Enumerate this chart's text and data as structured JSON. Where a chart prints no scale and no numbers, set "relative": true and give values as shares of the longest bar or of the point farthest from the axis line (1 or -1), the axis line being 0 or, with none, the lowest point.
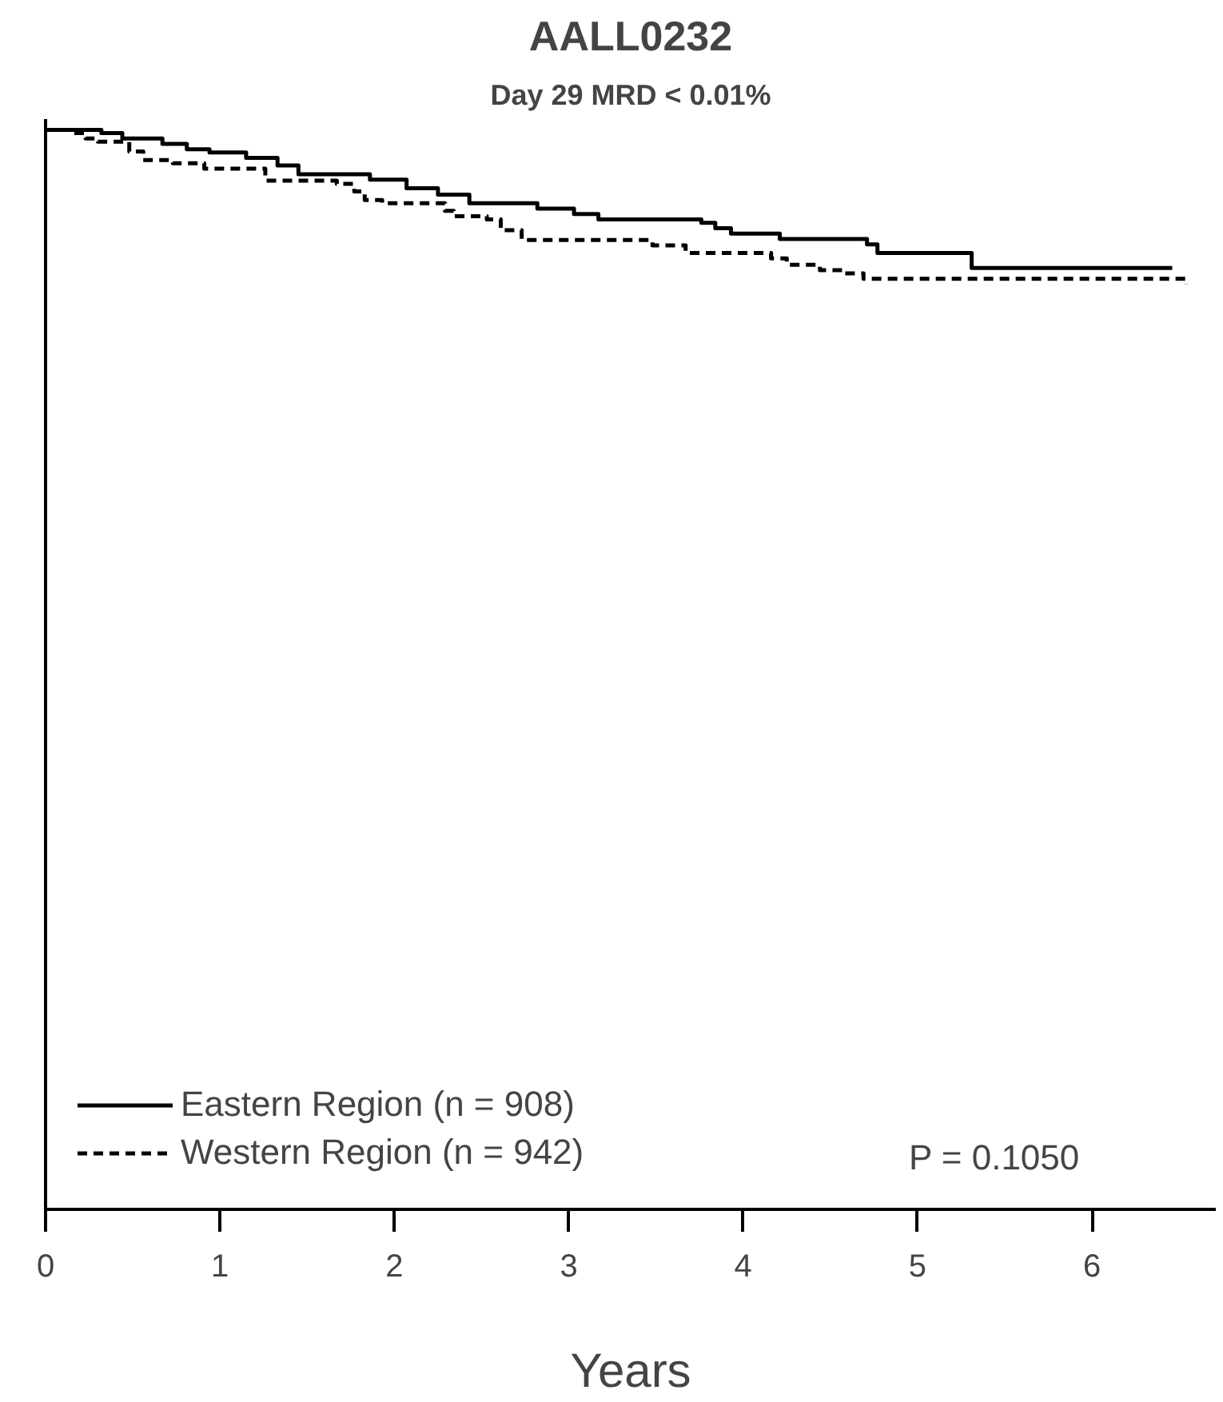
{
  "chart_data": {
    "type": "step",
    "title": "AALL0232",
    "subtitle": "Day 29 MRD < 0.01%",
    "xlabel": "Years",
    "relative": true,
    "xlim": [
      0,
      6.71
    ],
    "xticks": [
      0,
      1,
      2,
      3,
      4,
      5,
      6
    ],
    "legend": "bottom left",
    "grid": false,
    "marker": "none",
    "series": [
      {
        "name": "Eastern Region (n = 908)",
        "color": "#000000",
        "line_style": "solid",
        "x": [
          0,
          0.32,
          0.44,
          0.67,
          0.81,
          0.94,
          1.15,
          1.33,
          1.45,
          1.86,
          2.07,
          2.25,
          2.43,
          2.82,
          3.03,
          3.17,
          3.76,
          3.84,
          3.93,
          4.21,
          4.71,
          4.77,
          5.31,
          6.46
        ],
        "values": [
          1,
          0.997,
          0.992,
          0.987,
          0.982,
          0.979,
          0.974,
          0.967,
          0.959,
          0.954,
          0.946,
          0.94,
          0.932,
          0.927,
          0.922,
          0.917,
          0.914,
          0.909,
          0.904,
          0.899,
          0.894,
          0.886,
          0.872,
          0.872
        ]
      },
      {
        "name": "Western Region (n = 942)",
        "color": "#000000",
        "line_style": "dashed",
        "x": [
          0,
          0.15,
          0.23,
          0.3,
          0.48,
          0.56,
          0.73,
          0.91,
          1.26,
          1.67,
          1.77,
          1.83,
          1.93,
          2.29,
          2.34,
          2.53,
          2.61,
          2.73,
          3.48,
          3.67,
          4.16,
          4.25,
          4.44,
          4.57,
          4.69,
          6.54
        ],
        "values": [
          1,
          0.997,
          0.992,
          0.989,
          0.98,
          0.972,
          0.969,
          0.964,
          0.953,
          0.95,
          0.943,
          0.935,
          0.932,
          0.925,
          0.92,
          0.917,
          0.907,
          0.898,
          0.893,
          0.886,
          0.881,
          0.875,
          0.87,
          0.867,
          0.862,
          0.857
        ]
      }
    ],
    "annotations": [
      "P = 0.1050"
    ]
  }
}
